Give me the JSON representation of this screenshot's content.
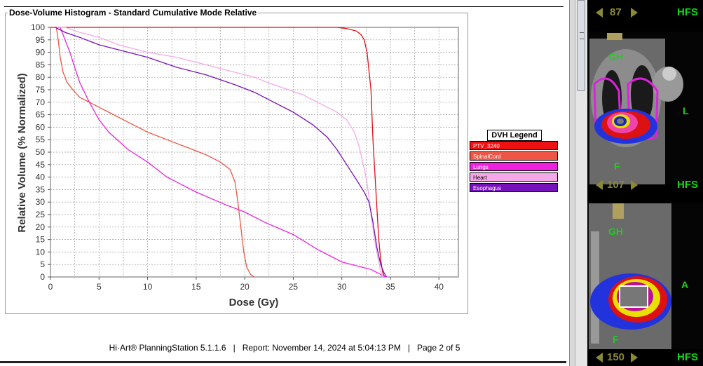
{
  "panel_title": "Dose-Volume Histogram - Standard Cumulative Mode Relative",
  "footer": {
    "product": "Hi·Art® PlanningStation 5.1.1.6",
    "report": "Report: November 14, 2024 at 5:04:13 PM",
    "page": "Page 2 of 5",
    "sep": "|"
  },
  "legend": {
    "title": "DVH Legend",
    "items": [
      {
        "label": "PTV_3240",
        "color": "#ee1111"
      },
      {
        "label": "SpinalCord",
        "color": "#ee5544"
      },
      {
        "label": "Lungs",
        "color": "#ee22dd"
      },
      {
        "label": "Heart",
        "color": "#f5a8e8"
      },
      {
        "label": "Esophagus",
        "color": "#7711bb"
      }
    ]
  },
  "chart_data": {
    "type": "line",
    "title": "Dose-Volume Histogram - Standard Cumulative Mode Relative",
    "xlabel": "Dose (Gy)",
    "ylabel": "Relative Volume (% Normalized)",
    "xlim": [
      0,
      42
    ],
    "ylim": [
      0,
      100
    ],
    "xticks": [
      0,
      5,
      10,
      15,
      20,
      25,
      30,
      35,
      40
    ],
    "yticks": [
      0,
      5,
      10,
      15,
      20,
      25,
      30,
      35,
      40,
      45,
      50,
      55,
      60,
      65,
      70,
      75,
      80,
      85,
      90,
      95,
      100
    ],
    "grid": true,
    "legend_position": "right",
    "series": [
      {
        "name": "PTV_3240",
        "color": "#dd1111",
        "x": [
          0,
          29.5,
          30.5,
          31.5,
          32.0,
          32.3,
          32.6,
          33.0,
          33.2,
          33.5,
          33.8,
          34.0,
          34.2,
          34.4
        ],
        "y": [
          100,
          100,
          99.5,
          98.5,
          97,
          95,
          90,
          75,
          55,
          35,
          15,
          7,
          2,
          0
        ]
      },
      {
        "name": "SpinalCord",
        "color": "#ee5544",
        "x": [
          0.6,
          0.8,
          1.0,
          1.3,
          1.7,
          2.3,
          3.0,
          4.0,
          5.0,
          6.0,
          8.0,
          10.0,
          12.0,
          14.0,
          16.0,
          17.5,
          18.5,
          19.0,
          19.3,
          19.6,
          19.9,
          20.2,
          20.6,
          21.0
        ],
        "y": [
          100,
          95,
          88,
          82,
          78,
          75,
          72,
          70,
          68,
          66,
          62,
          58,
          55,
          52,
          49,
          46,
          43,
          38,
          30,
          20,
          10,
          4,
          1,
          0
        ]
      },
      {
        "name": "Lungs",
        "color": "#ee22dd",
        "x": [
          0.6,
          1.0,
          1.5,
          2.0,
          2.5,
          3.0,
          4.0,
          5.0,
          6.0,
          8.0,
          10.0,
          12.0,
          15.0,
          18.0,
          20.0,
          22.0,
          25.0,
          27.5,
          29.0,
          30.0,
          31.0,
          32.0,
          33.0,
          33.5,
          34.0,
          34.5
        ],
        "y": [
          100,
          100,
          95,
          90,
          84,
          78,
          70,
          63,
          58,
          51,
          46,
          40,
          34,
          29,
          26,
          22,
          17,
          11,
          8,
          6,
          5,
          4,
          3,
          2,
          1,
          0
        ]
      },
      {
        "name": "Heart",
        "color": "#f5a8e8",
        "x": [
          0.5,
          1.5,
          3.0,
          5.0,
          7.0,
          10.0,
          13.0,
          16.0,
          19.0,
          21.0,
          23.0,
          26.0,
          28.5,
          29.5,
          30.5,
          31.3,
          31.8,
          32.2,
          32.5,
          32.8,
          33.1,
          33.5,
          33.8,
          34.0,
          34.3
        ],
        "y": [
          100,
          100,
          98,
          96,
          93,
          90,
          88,
          85,
          82,
          80,
          77,
          73,
          68,
          66,
          63,
          58,
          52,
          45,
          40,
          32,
          22,
          12,
          6,
          2,
          0
        ]
      },
      {
        "name": "Esophagus",
        "color": "#7711bb",
        "x": [
          0.5,
          1.5,
          3.0,
          5.0,
          7.0,
          10.0,
          13.0,
          16.0,
          19.0,
          21.0,
          23.0,
          25.0,
          27.0,
          28.5,
          29.5,
          30.5,
          31.5,
          32.3,
          32.8,
          33.2,
          33.6,
          34.0,
          34.3,
          34.6
        ],
        "y": [
          100,
          98,
          96,
          93,
          91,
          88,
          84,
          81,
          77,
          74,
          70,
          66,
          61,
          56,
          51,
          45,
          39,
          34,
          30,
          22,
          12,
          5,
          2,
          0
        ]
      }
    ]
  },
  "viewer": {
    "top_slice": "87",
    "mid_slice": "107",
    "bottom_slice": "150",
    "orientation_label": "HFS",
    "labels": [
      "GH",
      "L",
      "F",
      "GH",
      "A",
      "F"
    ]
  }
}
